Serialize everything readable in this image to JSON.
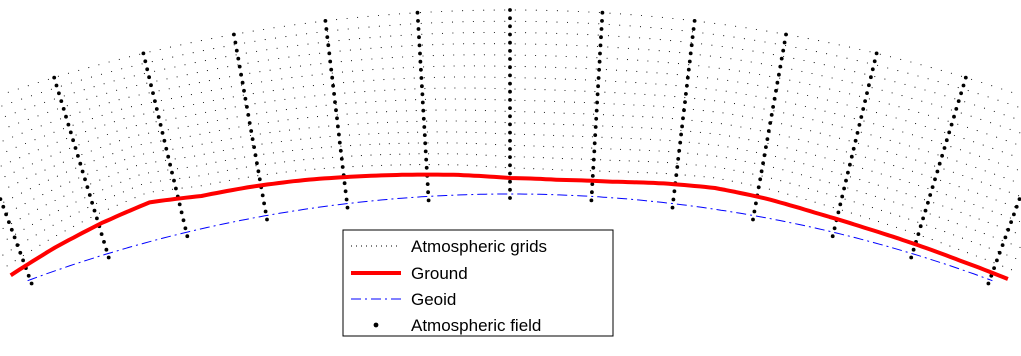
{
  "legend": {
    "items": [
      {
        "label": "Atmospheric grids",
        "style": "dotted",
        "color": "#000000"
      },
      {
        "label": "Ground",
        "style": "solid-thick",
        "color": "#ff0000"
      },
      {
        "label": "Geoid",
        "style": "dash-dot",
        "color": "#0000ff"
      },
      {
        "label": "Atmospheric field",
        "style": "markers",
        "color": "#000000"
      }
    ]
  },
  "colors": {
    "grid": "#000000",
    "ground": "#ff0000",
    "geoid": "#0000ff",
    "field": "#000000"
  },
  "diagram": {
    "grid_rows": 15,
    "field_columns": 13,
    "field_points_per_column": 24,
    "ground_profile_relative_height": [
      0.5,
      1.6,
      2.5,
      3.2,
      2.6,
      2.5,
      2.3,
      2.0,
      1.7,
      1.4,
      1.0,
      0.9,
      1.0,
      1.3,
      1.5,
      1.3,
      0.9,
      0.6,
      0.4,
      0.2,
      0.1
    ]
  }
}
